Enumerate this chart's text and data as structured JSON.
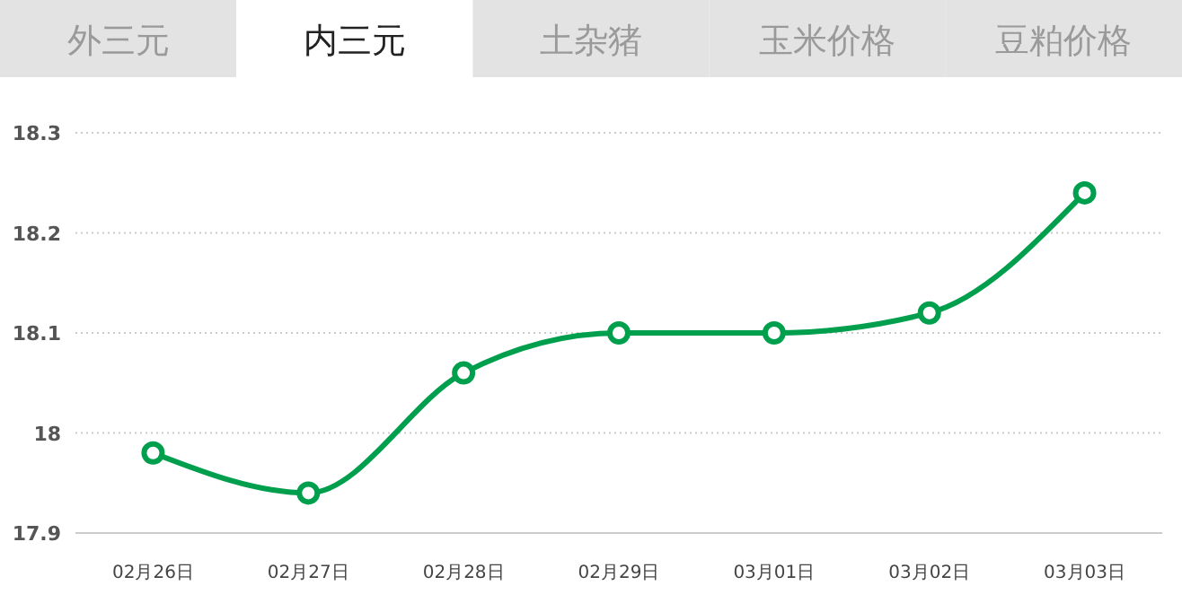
{
  "chart_data": {
    "type": "line",
    "title": "内三元",
    "annotations": [
      "外三元",
      "土杂猪",
      "玉米价格",
      "豆粕价格"
    ],
    "categories": [
      "02月26日",
      "02月27日",
      "02月28日",
      "02月29日",
      "03月01日",
      "03月02日",
      "03月03日"
    ],
    "series": [
      {
        "color": "#009f4d",
        "values": [
          17.98,
          17.94,
          18.06,
          18.1,
          18.1,
          18.12,
          18.24
        ]
      }
    ],
    "ylim": [
      17.9,
      18.3
    ],
    "yticks": [
      17.9,
      {
        "value": 18,
        "label": "18"
      },
      18.1,
      18.2,
      18.3
    ],
    "grid": "y",
    "marker": "circle",
    "line_style": "solid"
  }
}
